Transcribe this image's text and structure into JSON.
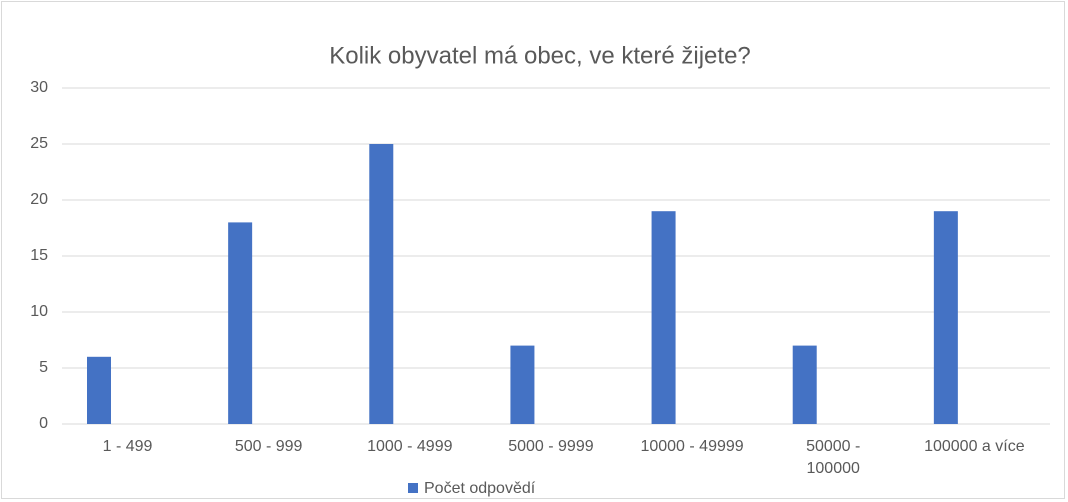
{
  "chart_data": {
    "type": "bar",
    "title": "Kolik obyvatel má obec, ve které žijete?",
    "categories": [
      "1 - 499",
      "500 - 999",
      "1000 - 4999",
      "5000 - 9999",
      "10000 - 49999",
      "50000 -\n100000",
      "100000 a více"
    ],
    "series": [
      {
        "name": "Počet odpovědí",
        "color": "#4472c4",
        "values": [
          6,
          18,
          25,
          7,
          19,
          7,
          19
        ]
      }
    ],
    "ylim": [
      0,
      30
    ],
    "yticks": [
      0,
      5,
      10,
      15,
      20,
      25,
      30
    ],
    "grid": true,
    "legend": "bottom"
  }
}
